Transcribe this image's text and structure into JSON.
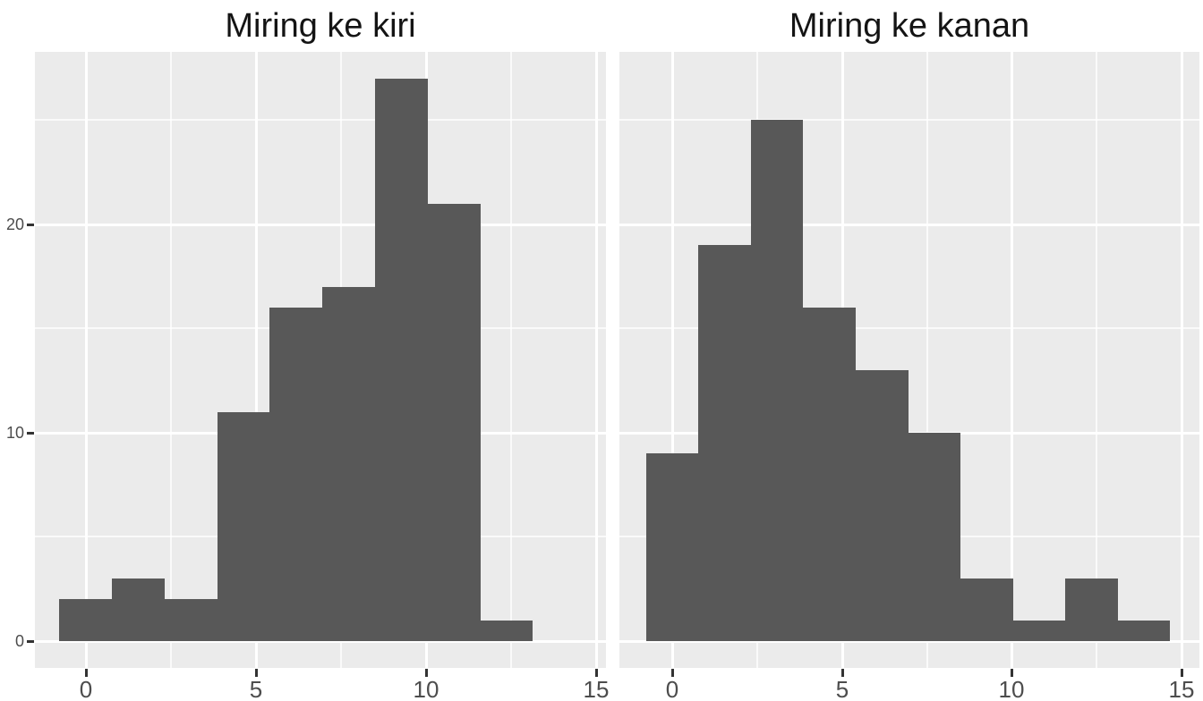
{
  "page": {
    "background": "#ffffff"
  },
  "style": {
    "panel_background": "#ebebeb",
    "grid_major_color": "#ffffff",
    "grid_minor_color": "rgba(255,255,255,0.75)",
    "bar_color": "#585858",
    "tick_mark_color": "#333333",
    "axis_text_color": "#4d4d4d",
    "title_color": "#141414"
  },
  "chart_data": [
    {
      "type": "bar",
      "subtype": "histogram",
      "title": "Miring ke kiri",
      "xlabel": "",
      "ylabel": "",
      "n": 100,
      "bin_start": -0.79,
      "bin_width": 1.547,
      "counts": [
        2,
        3,
        2,
        11,
        16,
        17,
        27,
        21,
        1
      ],
      "x_ticks": [
        0,
        5,
        10,
        15
      ],
      "x_tick_labels": [
        "0",
        "5",
        "10",
        "15"
      ],
      "x_minor_ticks": [
        2.5,
        7.5,
        12.5
      ],
      "y_ticks": [
        0,
        10,
        20
      ],
      "y_tick_labels": [
        "0",
        "10",
        "20"
      ],
      "y_minor_ticks": [
        5,
        15,
        25
      ],
      "y_labels_visible": true,
      "xlim": [
        -1.51,
        15.28
      ],
      "ylim": [
        -1.29,
        28.28
      ],
      "grid": true,
      "legend": "none",
      "skew_direction": "left"
    },
    {
      "type": "bar",
      "subtype": "histogram",
      "title": "Miring ke kanan",
      "xlabel": "",
      "ylabel": "",
      "n": 100,
      "bin_start": -0.78,
      "bin_width": 1.545,
      "counts": [
        9,
        19,
        25,
        16,
        13,
        10,
        3,
        1,
        3,
        1
      ],
      "x_ticks": [
        0,
        5,
        10,
        15
      ],
      "x_tick_labels": [
        "0",
        "5",
        "10",
        "15"
      ],
      "x_minor_ticks": [
        2.5,
        7.5,
        12.5
      ],
      "y_ticks": [
        0,
        10,
        20
      ],
      "y_tick_labels": [
        "0",
        "10",
        "20"
      ],
      "y_minor_ticks": [
        5,
        15,
        25
      ],
      "y_labels_visible": false,
      "xlim": [
        -1.565,
        15.53
      ],
      "ylim": [
        -1.29,
        28.28
      ],
      "grid": true,
      "legend": "none",
      "skew_direction": "right"
    }
  ]
}
